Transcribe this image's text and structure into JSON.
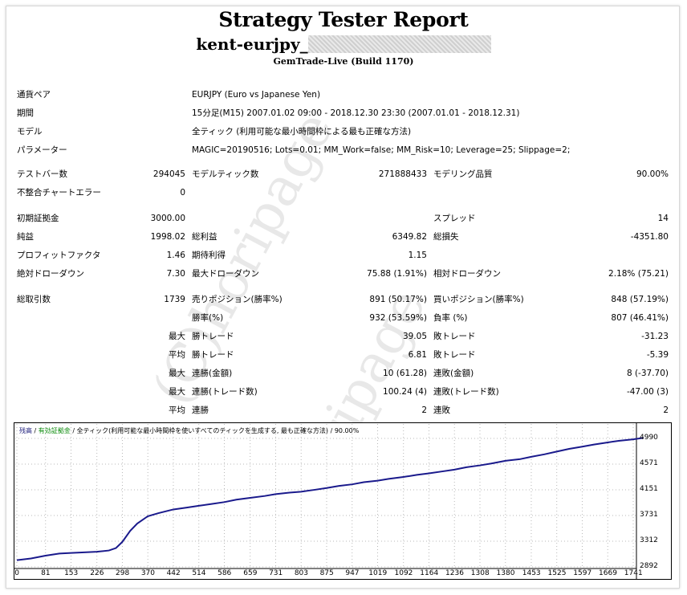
{
  "report": {
    "title": "Strategy Tester Report",
    "ea_name": "kent-eurjpy_",
    "server": "GemTrade-Live (Build 1170)"
  },
  "settings": {
    "symbol_label": "通貨ペア",
    "symbol_value": "EURJPY (Euro vs Japanese Yen)",
    "period_label": "期間",
    "period_value": "15分足(M15) 2007.01.02 09:00 - 2018.12.30 23:30 (2007.01.01 - 2018.12.31)",
    "model_label": "モデル",
    "model_value": "全ティック (利用可能な最小時間枠による最も正確な方法)",
    "params_label": "パラメーター",
    "params_value": "MAGIC=20190516; Lots=0.01; MM_Work=false; MM_Risk=10; Leverage=25; Slippage=2;"
  },
  "stats": {
    "bars_label": "テストバー数",
    "bars_value": "294045",
    "ticks_label": "モデルティック数",
    "ticks_value": "271888433",
    "quality_label": "モデリング品質",
    "quality_value": "90.00%",
    "mismatch_label": "不整合チャートエラー",
    "mismatch_value": "0",
    "deposit_label": "初期証拠金",
    "deposit_value": "3000.00",
    "spread_label": "スプレッド",
    "spread_value": "14",
    "net_label": "純益",
    "net_value": "1998.02",
    "gross_profit_label": "総利益",
    "gross_profit_value": "6349.82",
    "gross_loss_label": "総損失",
    "gross_loss_value": "-4351.80",
    "pf_label": "プロフィットファクタ",
    "pf_value": "1.46",
    "payoff_label": "期待利得",
    "payoff_value": "1.15",
    "abs_dd_label": "絶対ドローダウン",
    "abs_dd_value": "7.30",
    "max_dd_label": "最大ドローダウン",
    "max_dd_value": "75.88 (1.91%)",
    "rel_dd_label": "相対ドローダウン",
    "rel_dd_value": "2.18% (75.21)",
    "trades_label": "総取引数",
    "trades_value": "1739",
    "short_label": "売りポジション(勝率%)",
    "short_value": "891 (50.17%)",
    "long_label": "買いポジション(勝率%)",
    "long_value": "848 (57.19%)",
    "win_label": "勝率(%)",
    "win_value": "932 (53.59%)",
    "loss_label": "負率 (%)",
    "loss_value": "807 (46.41%)",
    "max_word": "最大",
    "avg_word": "平均",
    "largest_win_label": "勝トレード",
    "largest_win_value": "39.05",
    "largest_loss_label": "敗トレード",
    "largest_loss_value": "-31.23",
    "avg_win_label": "勝トレード",
    "avg_win_value": "6.81",
    "avg_loss_label": "敗トレード",
    "avg_loss_value": "-5.39",
    "cons_wins_money_label": "連勝(金額)",
    "cons_wins_money_value": "10 (61.28)",
    "cons_losses_money_label": "連敗(金額)",
    "cons_losses_money_value": "8 (-37.70)",
    "cons_profit_label": "連勝(トレード数)",
    "cons_profit_value": "100.24 (4)",
    "cons_loss_label": "連敗(トレード数)",
    "cons_loss_value": "-47.00 (3)",
    "avg_cons_win_label": "連勝",
    "avg_cons_win_value": "2",
    "avg_cons_loss_label": "連敗",
    "avg_cons_loss_value": "2"
  },
  "watermark": "(C)horipage",
  "chart_legend": {
    "balance": "残高",
    "sep1": " / ",
    "equity": "有効証拠金",
    "sep2": " / ",
    "model": "全ティック(利用可能な最小時間枠を使いすべてのティックを生成する, 最も正確な方法)",
    "sep3": " / ",
    "quality": "90.00%"
  },
  "chart_data": {
    "type": "line",
    "x_ticks": [
      "0",
      "81",
      "153",
      "226",
      "298",
      "370",
      "442",
      "514",
      "586",
      "659",
      "731",
      "803",
      "875",
      "947",
      "1019",
      "1092",
      "1164",
      "1236",
      "1308",
      "1380",
      "1453",
      "1525",
      "1597",
      "1669",
      "1741"
    ],
    "y_ticks": [
      "4990",
      "4571",
      "4151",
      "3731",
      "3312",
      "2892"
    ],
    "ylim": [
      2892,
      4990
    ],
    "xlim": [
      0,
      1741
    ],
    "series": [
      {
        "name": "残高",
        "color": "#1a1a8c",
        "x": [
          0,
          40,
          81,
          120,
          153,
          190,
          226,
          260,
          280,
          298,
          320,
          340,
          370,
          400,
          442,
          480,
          514,
          550,
          586,
          620,
          659,
          700,
          731,
          770,
          803,
          840,
          875,
          910,
          947,
          980,
          1019,
          1050,
          1092,
          1130,
          1164,
          1200,
          1236,
          1270,
          1308,
          1340,
          1380,
          1420,
          1453,
          1490,
          1525,
          1560,
          1597,
          1630,
          1669,
          1700,
          1741,
          1770
        ],
        "y": [
          3002,
          3030,
          3075,
          3110,
          3120,
          3130,
          3140,
          3160,
          3200,
          3300,
          3480,
          3600,
          3720,
          3770,
          3830,
          3860,
          3890,
          3920,
          3950,
          3990,
          4020,
          4050,
          4080,
          4105,
          4120,
          4150,
          4180,
          4215,
          4240,
          4275,
          4300,
          4330,
          4360,
          4395,
          4420,
          4450,
          4480,
          4520,
          4550,
          4580,
          4625,
          4650,
          4690,
          4730,
          4775,
          4820,
          4855,
          4890,
          4925,
          4950,
          4975,
          5000
        ]
      }
    ]
  }
}
